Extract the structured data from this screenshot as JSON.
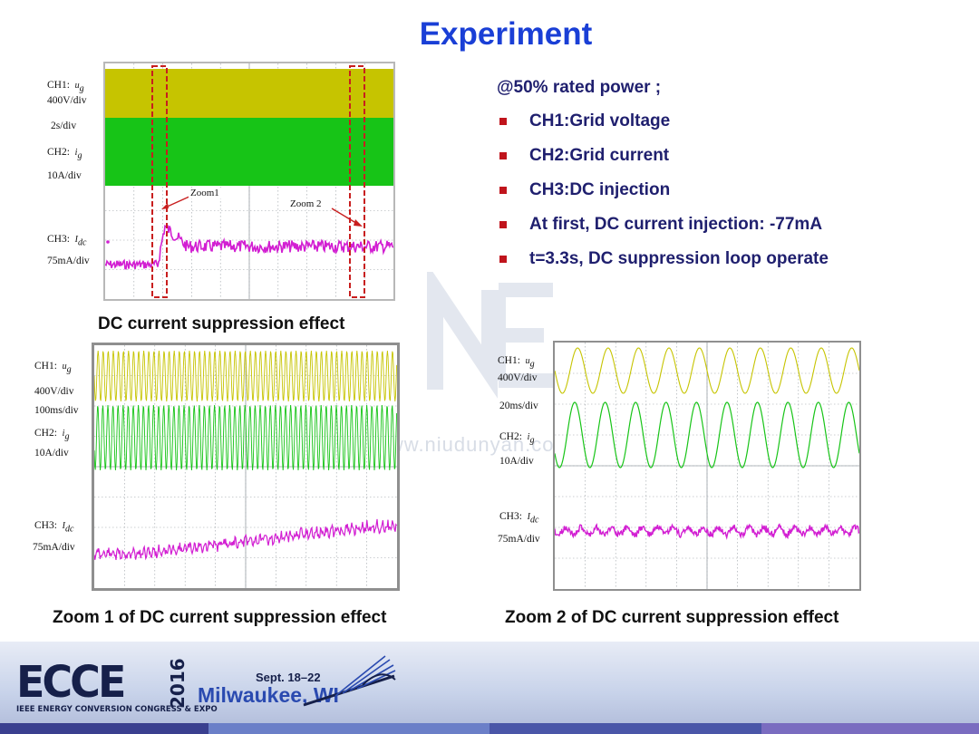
{
  "slide": {
    "title": "Experiment",
    "bullets_head": "@50% rated power ;",
    "bullets": [
      "CH1:Grid voltage",
      "CH2:Grid current",
      "CH3:DC injection",
      "At first, DC current injection: -77mA",
      "t=3.3s, DC suppression loop operate"
    ],
    "bullet_color": "#c0141c",
    "title_color": "#1a3fd6",
    "watermark": "www.niudunyan.com"
  },
  "scope_main": {
    "caption": "DC current suppression effect",
    "ch1": {
      "name": "CH1:",
      "sym": "u",
      "sub": "g",
      "scale": "400V/div"
    },
    "time_scale": "2s/div",
    "ch2": {
      "name": "CH2:",
      "sym": "i",
      "sub": "g",
      "scale": "10A/div"
    },
    "ch3": {
      "name": "CH3:",
      "sym": "I",
      "sub": "dc",
      "scale": "75mA/div"
    },
    "zoom1_label": "Zoom1",
    "zoom2_label": "Zoom 2"
  },
  "scope_zoom1": {
    "caption": "Zoom 1 of DC current suppression effect",
    "ch1": {
      "name": "CH1:",
      "sym": "u",
      "sub": "g",
      "scale": "400V/div"
    },
    "time_scale": "100ms/div",
    "ch2": {
      "name": "CH2:",
      "sym": "i",
      "sub": "g",
      "scale": "10A/div"
    },
    "ch3": {
      "name": "CH3:",
      "sym": "I",
      "sub": "dc",
      "scale": "75mA/div"
    }
  },
  "scope_zoom2": {
    "caption": "Zoom 2 of DC current suppression effect",
    "ch1": {
      "name": "CH1:",
      "sym": "u",
      "sub": "g",
      "scale": "400V/div"
    },
    "time_scale": "20ms/div",
    "ch2": {
      "name": "CH2:",
      "sym": "i",
      "sub": "g",
      "scale": "10A/div"
    },
    "ch3": {
      "name": "CH3:",
      "sym": "I",
      "sub": "dc",
      "scale": "75mA/div"
    }
  },
  "colors": {
    "ch1": "#c6c400",
    "ch2": "#17c417",
    "ch3": "#d21fd2",
    "zoom_box": "#c81e1e",
    "grid": "#9aa0a6"
  },
  "footer": {
    "logo": "ECCE",
    "year": "2016",
    "subtitle": "IEEE ENERGY CONVERSION CONGRESS & EXPO",
    "dates": "Sept. 18–22",
    "city": "Milwaukee, WI"
  }
}
